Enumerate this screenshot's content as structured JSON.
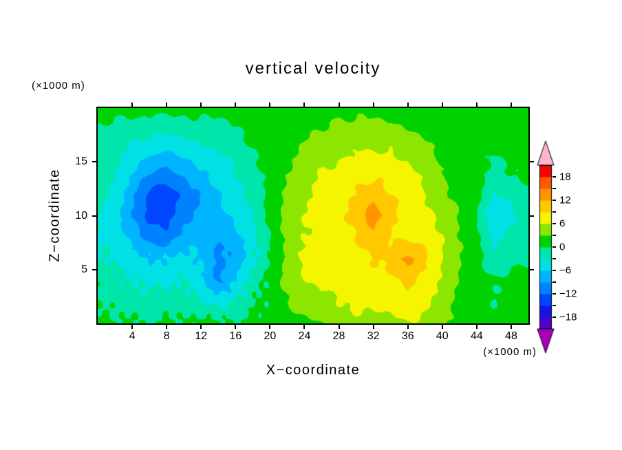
{
  "title": "vertical velocity",
  "axes": {
    "x_label": "X−coordinate",
    "z_label": "Z−coordinate",
    "x_unit": "(×1000 m)",
    "z_unit": "(×1000 m)"
  },
  "chart_data": {
    "type": "heatmap",
    "title": "vertical velocity",
    "xlabel": "X−coordinate",
    "ylabel": "Z−coordinate",
    "x_unit_label": "(×1000 m)",
    "y_unit_label": "(×1000 m)",
    "x_range": [
      0,
      50
    ],
    "z_range": [
      0,
      20
    ],
    "x_ticks": [
      4,
      8,
      12,
      16,
      20,
      24,
      28,
      32,
      36,
      40,
      44,
      48
    ],
    "z_ticks": [
      5,
      10,
      15
    ],
    "grid": "off",
    "legend_position": "right",
    "grid_x": [
      0,
      2,
      4,
      6,
      8,
      10,
      12,
      14,
      16,
      18,
      20,
      22,
      24,
      26,
      28,
      30,
      32,
      34,
      36,
      38,
      40,
      42,
      44,
      46,
      48,
      50
    ],
    "grid_z": [
      0,
      2,
      4,
      6,
      8,
      10,
      12,
      14,
      16,
      18,
      20
    ],
    "values": [
      [
        1,
        0,
        1,
        -1,
        1,
        0,
        1,
        1,
        0,
        1,
        1,
        2,
        2,
        3,
        4,
        5,
        5,
        5,
        6,
        5,
        4,
        2,
        1,
        1,
        1,
        1
      ],
      [
        0,
        -1,
        -2,
        -1,
        -2,
        -1,
        -3,
        -4,
        -3,
        0,
        1,
        3,
        5,
        5,
        6,
        7,
        7,
        7,
        8,
        7,
        5,
        2,
        1,
        0,
        1,
        1
      ],
      [
        -1,
        -2,
        -3,
        -4,
        -4,
        -3,
        -5,
        -10,
        -6,
        -2,
        1,
        4,
        6,
        7,
        7,
        8,
        8,
        8,
        10,
        8,
        6,
        3,
        1,
        0,
        1,
        1
      ],
      [
        -3,
        -3,
        -5,
        -6,
        -6,
        -5,
        -6,
        -10,
        -8,
        -4,
        0,
        4,
        7,
        7,
        8,
        8,
        9,
        10,
        13,
        10,
        6,
        3,
        1,
        -2,
        -1,
        0
      ],
      [
        -3,
        -4,
        -7,
        -10,
        -11,
        -8,
        -6,
        -9,
        -7,
        -4,
        0,
        4,
        6,
        7,
        8,
        9,
        11,
        9,
        8,
        8,
        6,
        3,
        1,
        -4,
        -2,
        -1
      ],
      [
        -3,
        -5,
        -9,
        -13,
        -13,
        -10,
        -8,
        -7,
        -5,
        -3,
        1,
        4,
        6,
        7,
        8,
        10,
        14,
        10,
        8,
        7,
        5,
        3,
        0,
        -6,
        -4,
        -2
      ],
      [
        -2,
        -4,
        -8,
        -13,
        -14,
        -11,
        -9,
        -6,
        -4,
        -2,
        1,
        4,
        5,
        7,
        8,
        9,
        11,
        9,
        8,
        6,
        4,
        2,
        1,
        -3,
        -2,
        -1
      ],
      [
        -1,
        -3,
        -6,
        -9,
        -10,
        -8,
        -6,
        -5,
        -3,
        -1,
        1,
        3,
        5,
        6,
        7,
        8,
        8,
        8,
        7,
        5,
        3,
        1,
        1,
        -1,
        0,
        1
      ],
      [
        -1,
        -2,
        -4,
        -5,
        -6,
        -5,
        -4,
        -3,
        -2,
        0,
        1,
        2,
        4,
        5,
        5,
        6,
        6,
        6,
        5,
        4,
        2,
        1,
        1,
        0,
        1,
        1
      ],
      [
        0,
        -1,
        -1,
        -2,
        -2,
        -2,
        -1,
        -1,
        0,
        1,
        1,
        2,
        2,
        3,
        4,
        4,
        4,
        4,
        3,
        2,
        1,
        1,
        1,
        1,
        1,
        1
      ],
      [
        1,
        1,
        1,
        1,
        1,
        1,
        1,
        1,
        1,
        1,
        2,
        2,
        2,
        2,
        2,
        2,
        2,
        1,
        1,
        1,
        1,
        1,
        1,
        1,
        1,
        1
      ]
    ],
    "levels": [
      -21,
      -18,
      -15,
      -12,
      -9,
      -6,
      -3,
      0,
      3,
      6,
      9,
      12,
      15,
      18,
      21
    ],
    "band_colors": [
      "#aa00bb",
      "#5500cc",
      "#1414e6",
      "#0046ff",
      "#0082ff",
      "#00b4ff",
      "#00e1e6",
      "#00e6aa",
      "#00d200",
      "#8ce600",
      "#f5f500",
      "#ffc800",
      "#ff9600",
      "#ff5a00",
      "#ff0000",
      "#ffb4c8"
    ],
    "colorbar_labels": [
      {
        "value": 18,
        "label": "18"
      },
      {
        "value": 12,
        "label": "12"
      },
      {
        "value": 6,
        "label": "6"
      },
      {
        "value": 0,
        "label": "0"
      },
      {
        "value": -6,
        "label": "−6"
      },
      {
        "value": -12,
        "label": "−12"
      },
      {
        "value": -18,
        "label": "−18"
      }
    ]
  }
}
